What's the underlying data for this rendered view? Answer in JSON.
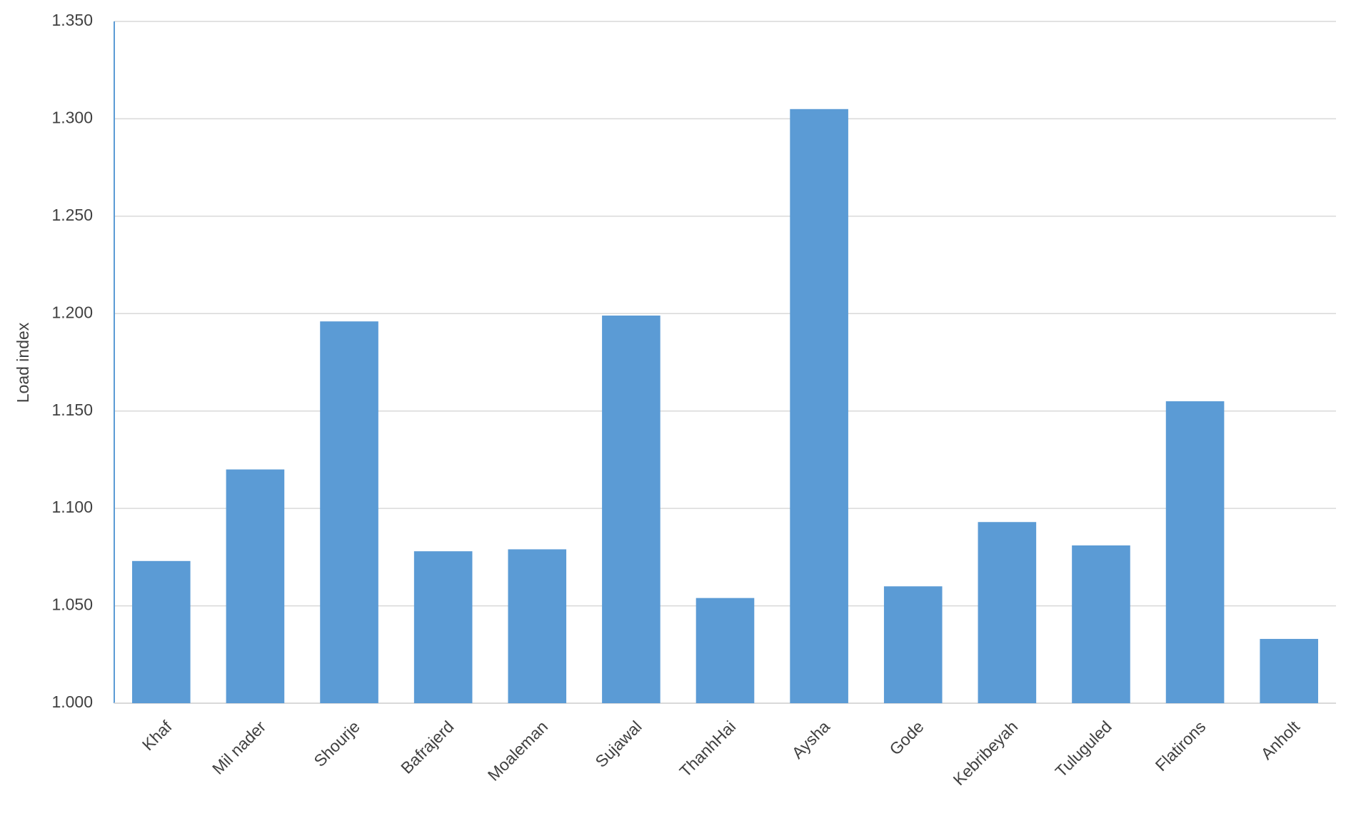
{
  "chart_data": {
    "type": "bar",
    "y_label": "Load index",
    "categories": [
      "Khaf",
      "Mil nader",
      "Shourje",
      "Bafrajerd",
      "Moaleman",
      "Sujawal",
      "ThanhHai",
      "Aysha",
      "Gode",
      "Kebribeyah",
      "Tuluguled",
      "Flatirons",
      "Anholt"
    ],
    "values": [
      1.073,
      1.12,
      1.196,
      1.078,
      1.079,
      1.199,
      1.054,
      1.305,
      1.06,
      1.093,
      1.081,
      1.155,
      1.033
    ],
    "color": "#5b9bd5",
    "ylim": [
      1.0,
      1.35
    ],
    "yticks": [
      {
        "value": 1.0,
        "label": "1.000"
      },
      {
        "value": 1.05,
        "label": "1.050"
      },
      {
        "value": 1.1,
        "label": "1.100"
      },
      {
        "value": 1.15,
        "label": "1.150"
      },
      {
        "value": 1.2,
        "label": "1.200"
      },
      {
        "value": 1.25,
        "label": "1.250"
      },
      {
        "value": 1.3,
        "label": "1.300"
      },
      {
        "value": 1.35,
        "label": "1.350"
      }
    ],
    "grid": true
  }
}
